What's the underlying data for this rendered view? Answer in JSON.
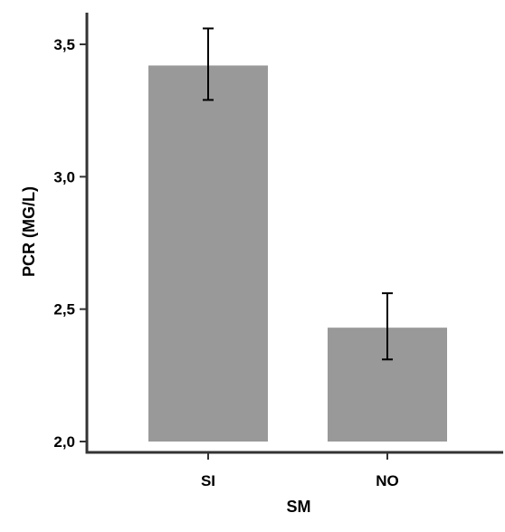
{
  "chart_data": {
    "type": "bar",
    "title": "",
    "xlabel": "SM",
    "ylabel": "PCR (MG/L)",
    "categories": [
      "SI",
      "NO"
    ],
    "values": [
      3.42,
      2.43
    ],
    "error": {
      "upper": [
        3.56,
        2.56
      ],
      "lower": [
        3.29,
        2.31
      ]
    },
    "ylim": [
      2.0,
      3.6
    ],
    "yticks": [
      {
        "value": 2.0,
        "label": "2,0"
      },
      {
        "value": 2.5,
        "label": "2,5"
      },
      {
        "value": 3.0,
        "label": "3,0"
      },
      {
        "value": 3.5,
        "label": "3,5"
      }
    ],
    "grid": false,
    "legend": "none",
    "colors": {
      "bar": "#999999",
      "axis": "#333333",
      "error_bar": "#000000"
    }
  }
}
